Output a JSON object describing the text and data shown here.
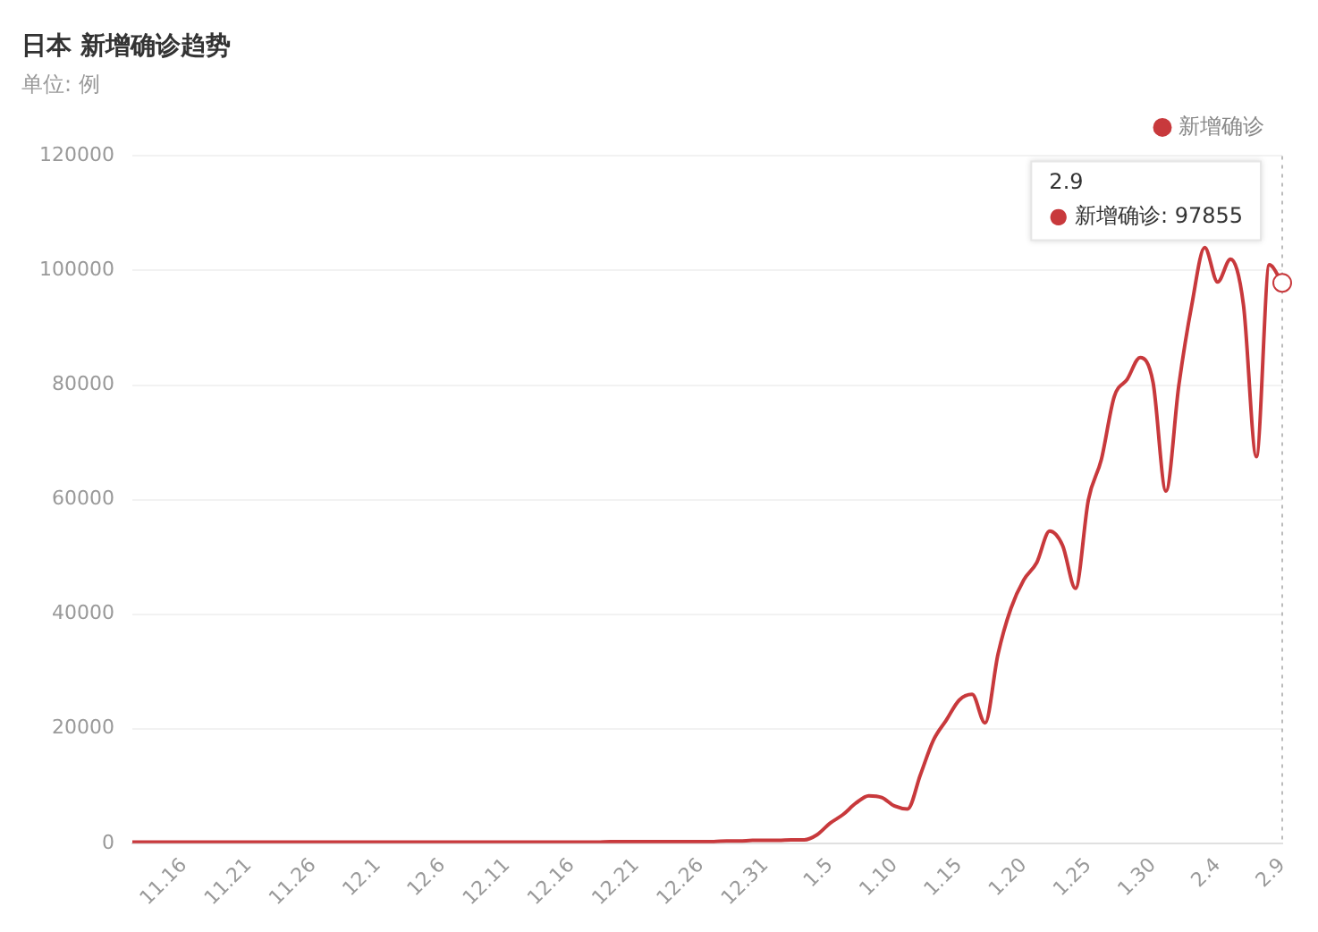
{
  "chart_data": {
    "type": "line",
    "title": "日本 新增确诊趋势",
    "subtitle": "单位: 例",
    "categories": [
      null,
      null,
      null,
      null,
      "11.16",
      null,
      null,
      null,
      null,
      "11.21",
      null,
      null,
      null,
      null,
      "11.26",
      null,
      null,
      null,
      null,
      "12.1",
      null,
      null,
      null,
      null,
      "12.6",
      null,
      null,
      null,
      null,
      "12.11",
      null,
      null,
      null,
      null,
      "12.16",
      null,
      null,
      null,
      null,
      "12.21",
      null,
      null,
      null,
      null,
      "12.26",
      null,
      null,
      null,
      null,
      "12.31",
      null,
      null,
      null,
      null,
      "1.5",
      null,
      null,
      null,
      null,
      "1.10",
      null,
      null,
      null,
      null,
      "1.15",
      null,
      null,
      null,
      null,
      "1.20",
      null,
      null,
      null,
      null,
      "1.25",
      null,
      null,
      null,
      null,
      "1.30",
      null,
      null,
      null,
      null,
      "2.4",
      null,
      null,
      null,
      null,
      "2.9"
    ],
    "series": [
      {
        "name": "新增确诊",
        "color": "#c8393c",
        "values": [
          200,
          200,
          200,
          200,
          200,
          200,
          200,
          200,
          200,
          200,
          200,
          200,
          200,
          200,
          200,
          200,
          200,
          200,
          200,
          200,
          200,
          200,
          200,
          200,
          200,
          200,
          200,
          200,
          200,
          200,
          200,
          200,
          200,
          200,
          200,
          200,
          200,
          300,
          300,
          300,
          300,
          300,
          300,
          300,
          300,
          300,
          400,
          400,
          500,
          500,
          500,
          600,
          600,
          1500,
          3500,
          5000,
          7000,
          8300,
          8000,
          6500,
          6000,
          12000,
          18000,
          21500,
          25000,
          26000,
          21000,
          33000,
          41000,
          46000,
          49000,
          54500,
          52000,
          44500,
          60000,
          67000,
          78000,
          81000,
          84800,
          80500,
          61500,
          80000,
          94000,
          104000,
          98000,
          102000,
          94000,
          67500,
          101000,
          97855
        ]
      }
    ],
    "ylim": [
      0,
      120000
    ],
    "yticks": [
      0,
      20000,
      40000,
      60000,
      80000,
      100000,
      120000
    ],
    "grid": "y",
    "legend": "top right",
    "marker": "none",
    "annotations": [
      "2.9\n● 新增确诊: 97855"
    ]
  }
}
